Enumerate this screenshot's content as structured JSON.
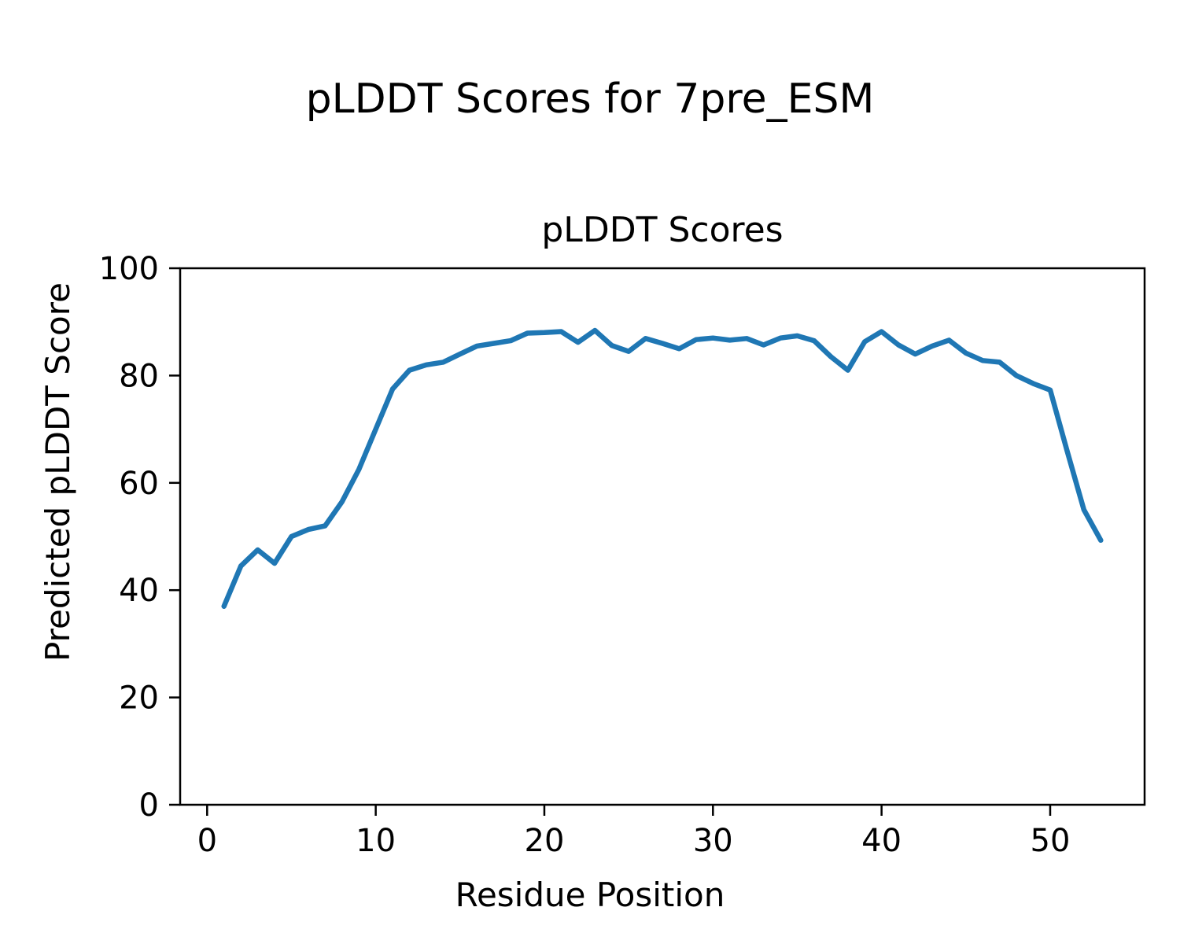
{
  "figure": {
    "suptitle": "pLDDT Scores for 7pre_ESM"
  },
  "chart_data": {
    "type": "line",
    "title": "pLDDT Scores",
    "xlabel": "Residue Position",
    "ylabel": "Predicted pLDDT Score",
    "x": [
      1,
      2,
      3,
      4,
      5,
      6,
      7,
      8,
      9,
      10,
      11,
      12,
      13,
      14,
      15,
      16,
      17,
      18,
      19,
      20,
      21,
      22,
      23,
      24,
      25,
      26,
      27,
      28,
      29,
      30,
      31,
      32,
      33,
      34,
      35,
      36,
      37,
      38,
      39,
      40,
      41,
      42,
      43,
      44,
      45,
      46,
      47,
      48,
      49,
      50,
      51,
      52,
      53
    ],
    "values": [
      37.0,
      44.5,
      47.5,
      45.0,
      50.0,
      51.3,
      52.0,
      56.5,
      62.5,
      70.0,
      77.5,
      81.0,
      82.0,
      82.5,
      84.0,
      85.5,
      86.0,
      86.5,
      87.9,
      88.0,
      88.2,
      86.2,
      88.4,
      85.6,
      84.5,
      86.9,
      86.0,
      85.0,
      86.7,
      87.0,
      86.6,
      86.9,
      85.7,
      87.0,
      87.4,
      86.5,
      83.5,
      81.0,
      86.3,
      88.2,
      85.7,
      84.0,
      85.5,
      86.6,
      84.2,
      82.8,
      82.5,
      80.0,
      78.5,
      77.3,
      66.0,
      55.0,
      49.3
    ],
    "xlim": [
      -1.6,
      55.6
    ],
    "ylim": [
      0,
      100
    ],
    "x_ticks": [
      0,
      10,
      20,
      30,
      40,
      50
    ],
    "y_ticks": [
      0,
      20,
      40,
      60,
      80,
      100
    ],
    "line_color": "#1f77b4",
    "axis_color": "#000000",
    "grid": false,
    "legend": "none"
  }
}
